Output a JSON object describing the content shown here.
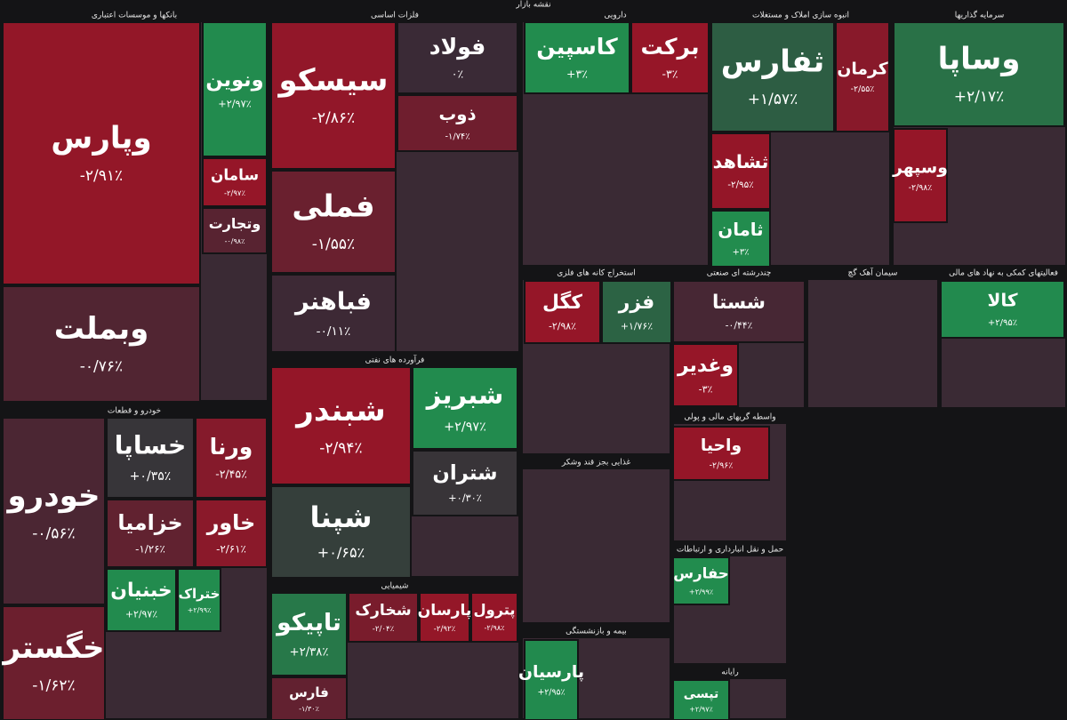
{
  "title": "نقشه بازار",
  "sectors": [
    {
      "name": "بانکها و موسسات اعتباری",
      "cells": [
        {
          "ticker": "وپارس",
          "change": -2.91,
          "change_label": "-۲/۹۱٪"
        },
        {
          "ticker": "وبملت",
          "change": -0.76,
          "change_label": "-۰/۷۶٪"
        },
        {
          "ticker": "ونوین",
          "change": 2.97,
          "change_label": "+۲/۹۷٪"
        },
        {
          "ticker": "سامان",
          "change": -2.97,
          "change_label": "-۲/۹۷٪"
        },
        {
          "ticker": "وتجارت",
          "change": -0.98,
          "change_label": "-۰/۹۸٪"
        }
      ]
    },
    {
      "name": "خودرو و قطعات",
      "cells": [
        {
          "ticker": "خودرو",
          "change": -0.56,
          "change_label": "-۰/۵۶٪"
        },
        {
          "ticker": "خگستر",
          "change": -1.62,
          "change_label": "-۱/۶۲٪"
        },
        {
          "ticker": "خساپا",
          "change": 0.35,
          "change_label": "+۰/۳۵٪"
        },
        {
          "ticker": "ورنا",
          "change": -2.45,
          "change_label": "-۲/۴۵٪"
        },
        {
          "ticker": "خزامیا",
          "change": -1.26,
          "change_label": "-۱/۲۶٪"
        },
        {
          "ticker": "خاور",
          "change": -2.61,
          "change_label": "-۲/۶۱٪"
        },
        {
          "ticker": "خبنیان",
          "change": 2.97,
          "change_label": "+۲/۹۷٪"
        },
        {
          "ticker": "ختراک",
          "change": 2.99,
          "change_label": "+۲/۹۹٪"
        }
      ]
    },
    {
      "name": "فلزات اساسی",
      "cells": [
        {
          "ticker": "سیسکو",
          "change": -2.86,
          "change_label": "-۲/۸۶٪"
        },
        {
          "ticker": "فملی",
          "change": -1.55,
          "change_label": "-۱/۵۵٪"
        },
        {
          "ticker": "فباهنر",
          "change": -0.11,
          "change_label": "-۰/۱۱٪"
        },
        {
          "ticker": "فولاد",
          "change": 0,
          "change_label": "۰٪"
        },
        {
          "ticker": "ذوب",
          "change": -1.74,
          "change_label": "-۱/۷۴٪"
        }
      ]
    },
    {
      "name": "فرآورده های نفتی",
      "cells": [
        {
          "ticker": "شبندر",
          "change": -2.94,
          "change_label": "-۲/۹۴٪"
        },
        {
          "ticker": "شپنا",
          "change": 0.65,
          "change_label": "+۰/۶۵٪"
        },
        {
          "ticker": "شبریز",
          "change": 2.97,
          "change_label": "+۲/۹۷٪"
        },
        {
          "ticker": "شتران",
          "change": 0.3,
          "change_label": "+۰/۳۰٪"
        }
      ]
    },
    {
      "name": "شیمیایی",
      "cells": [
        {
          "ticker": "تاپیکو",
          "change": 2.38,
          "change_label": "+۲/۳۸٪"
        },
        {
          "ticker": "فارس",
          "change": -1.3,
          "change_label": "-۱/۳۰٪"
        },
        {
          "ticker": "شخارک",
          "change": -2.04,
          "change_label": "-۲/۰۴٪"
        },
        {
          "ticker": "پارسان",
          "change": -2.92,
          "change_label": "-۲/۹۲٪"
        },
        {
          "ticker": "پترول",
          "change": -2.98,
          "change_label": "-۲/۹۸٪"
        }
      ]
    },
    {
      "name": "دارویی",
      "cells": [
        {
          "ticker": "کاسپین",
          "change": 3,
          "change_label": "+۳٪"
        },
        {
          "ticker": "برکت",
          "change": -3,
          "change_label": "-۳٪"
        }
      ]
    },
    {
      "name": "انبوه سازی املاک و مستغلات",
      "cells": [
        {
          "ticker": "ثفارس",
          "change": 1.57,
          "change_label": "+۱/۵۷٪"
        },
        {
          "ticker": "کرمان",
          "change": -2.55,
          "change_label": "-۲/۵۵٪"
        },
        {
          "ticker": "ثشاهد",
          "change": -2.95,
          "change_label": "-۲/۹۵٪"
        },
        {
          "ticker": "ثامان",
          "change": 3,
          "change_label": "+۳٪"
        }
      ]
    },
    {
      "name": "سرمایه گذاریها",
      "cells": [
        {
          "ticker": "وساپا",
          "change": 2.17,
          "change_label": "+۲/۱۷٪"
        },
        {
          "ticker": "وسپهر",
          "change": -2.98,
          "change_label": "-۲/۹۸٪"
        }
      ]
    },
    {
      "name": "استخراج کانه های فلزی",
      "cells": [
        {
          "ticker": "کگل",
          "change": -2.98,
          "change_label": "-۲/۹۸٪"
        },
        {
          "ticker": "فزر",
          "change": 1.76,
          "change_label": "+۱/۷۶٪"
        }
      ]
    },
    {
      "name": "چندرشته ای صنعتی",
      "cells": [
        {
          "ticker": "شستا",
          "change": -0.44,
          "change_label": "-۰/۴۴٪"
        },
        {
          "ticker": "وغدیر",
          "change": -3,
          "change_label": "-۳٪"
        }
      ]
    },
    {
      "name": "غذایی بجز قند وشکر",
      "cells": []
    },
    {
      "name": "بیمه و بازنشستگی",
      "cells": [
        {
          "ticker": "پارسیان",
          "change": 2.95,
          "change_label": "+۲/۹۵٪"
        }
      ]
    },
    {
      "name": "سیمان آهک گچ",
      "cells": []
    },
    {
      "name": "فعالیتهای کمکی به نهاد های مالی",
      "cells": [
        {
          "ticker": "کالا",
          "change": 2.95,
          "change_label": "+۲/۹۵٪"
        }
      ]
    },
    {
      "name": "واسطه گریهای مالی و پولی",
      "cells": [
        {
          "ticker": "واحیا",
          "change": -2.96,
          "change_label": "-۲/۹۶٪"
        }
      ]
    },
    {
      "name": "حمل و نقل انبارداری و ارتباطات",
      "cells": [
        {
          "ticker": "حفارس",
          "change": 2.99,
          "change_label": "+۲/۹۹٪"
        }
      ]
    },
    {
      "name": "رایانه",
      "cells": [
        {
          "ticker": "تپسی",
          "change": 2.97,
          "change_label": "+۲/۹۷٪"
        }
      ]
    }
  ]
}
